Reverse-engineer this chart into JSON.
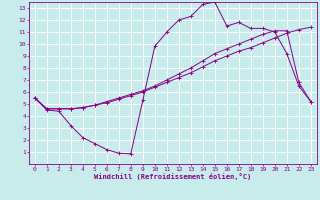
{
  "xlabel": "Windchill (Refroidissement éolien,°C)",
  "bg_color": "#c8ecec",
  "grid_color": "#ffffff",
  "line_color": "#880088",
  "xlim": [
    -0.5,
    23.5
  ],
  "ylim": [
    0,
    13.5
  ],
  "xticks": [
    0,
    1,
    2,
    3,
    4,
    5,
    6,
    7,
    8,
    9,
    10,
    11,
    12,
    13,
    14,
    15,
    16,
    17,
    18,
    19,
    20,
    21,
    22,
    23
  ],
  "yticks": [
    1,
    2,
    3,
    4,
    5,
    6,
    7,
    8,
    9,
    10,
    11,
    12,
    13
  ],
  "line1_x": [
    0,
    1,
    2,
    3,
    4,
    5,
    6,
    7,
    8,
    9,
    10,
    11,
    12,
    13,
    14,
    15,
    16,
    17,
    18,
    19,
    20,
    21,
    22,
    23
  ],
  "line1_y": [
    5.5,
    4.5,
    4.4,
    3.2,
    2.2,
    1.7,
    1.2,
    0.9,
    0.85,
    5.3,
    9.8,
    11.0,
    12.0,
    12.3,
    13.3,
    13.5,
    11.5,
    11.8,
    11.3,
    11.3,
    11.0,
    9.2,
    6.5,
    5.2
  ],
  "line2_x": [
    0,
    1,
    2,
    3,
    4,
    5,
    6,
    7,
    8,
    9,
    10,
    11,
    12,
    13,
    14,
    15,
    16,
    17,
    18,
    19,
    20,
    21,
    22,
    23
  ],
  "line2_y": [
    5.5,
    4.6,
    4.6,
    4.6,
    4.7,
    4.9,
    5.1,
    5.4,
    5.7,
    6.0,
    6.4,
    6.8,
    7.2,
    7.6,
    8.1,
    8.6,
    9.0,
    9.4,
    9.7,
    10.1,
    10.5,
    10.9,
    11.2,
    11.4
  ],
  "line3_x": [
    0,
    1,
    2,
    3,
    4,
    5,
    6,
    7,
    8,
    9,
    10,
    11,
    12,
    13,
    14,
    15,
    16,
    17,
    18,
    19,
    20,
    21,
    22,
    23
  ],
  "line3_y": [
    5.5,
    4.6,
    4.6,
    4.6,
    4.7,
    4.9,
    5.2,
    5.5,
    5.8,
    6.1,
    6.5,
    7.0,
    7.5,
    8.0,
    8.6,
    9.2,
    9.6,
    10.0,
    10.4,
    10.8,
    11.1,
    11.1,
    6.8,
    5.2
  ]
}
